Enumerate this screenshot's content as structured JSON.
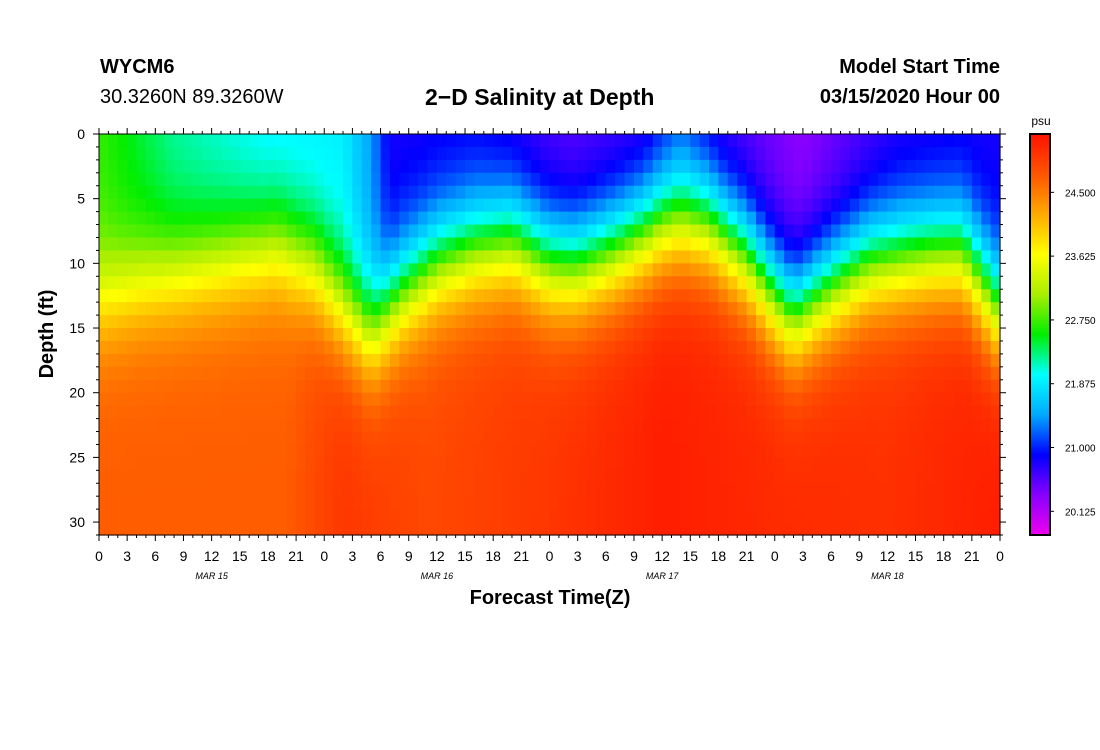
{
  "header": {
    "station_id": "WYCM6",
    "location": "30.3260N 89.3260W",
    "model_start_label": "Model Start Time",
    "model_start_value": "03/15/2020 Hour 00"
  },
  "chart_data": {
    "type": "heatmap",
    "title": "2−D Salinity at Depth",
    "xlabel": "Forecast Time(Z)",
    "ylabel": "Depth (ft)",
    "xlim": [
      0,
      96
    ],
    "ylim": [
      31,
      0
    ],
    "x_tick_labels": [
      "0",
      "3",
      "6",
      "9",
      "12",
      "15",
      "18",
      "21",
      "0",
      "3",
      "6",
      "9",
      "12",
      "15",
      "18",
      "21",
      "0",
      "3",
      "6",
      "9",
      "12",
      "15",
      "18",
      "21",
      "0",
      "3",
      "6",
      "9",
      "12",
      "15",
      "18",
      "21",
      "0"
    ],
    "x_tick_step_hours": 3,
    "day_labels": [
      {
        "hour": 12,
        "label": "MAR 15"
      },
      {
        "hour": 36,
        "label": "MAR 16"
      },
      {
        "hour": 60,
        "label": "MAR 17"
      },
      {
        "hour": 84,
        "label": "MAR 18"
      }
    ],
    "y_ticks": [
      0,
      5,
      10,
      15,
      20,
      25,
      30
    ],
    "colorbar": {
      "unit": "psu",
      "min": 19.8,
      "max": 25.3,
      "tick_labels": [
        "24.500",
        "23.625",
        "22.750",
        "21.875",
        "21.000",
        "20.125"
      ],
      "tick_values": [
        24.5,
        23.625,
        22.75,
        21.875,
        21.0,
        20.125
      ],
      "colors": [
        "#ee00ee",
        "#8800ff",
        "#0000ff",
        "#00aaff",
        "#00ffff",
        "#00ee00",
        "#aaee00",
        "#ffff00",
        "#ffaa00",
        "#ff5500",
        "#ff1100"
      ]
    },
    "halocline_depth_ft_by_hour": [
      [
        0,
        13.0
      ],
      [
        5,
        11.5
      ],
      [
        10,
        10.5
      ],
      [
        15,
        9.5
      ],
      [
        19,
        8.8
      ],
      [
        23,
        10.5
      ],
      [
        26,
        13.5
      ],
      [
        29,
        15.5
      ],
      [
        32,
        12.5
      ],
      [
        36,
        10.0
      ],
      [
        40,
        8.8
      ],
      [
        44,
        8.2
      ],
      [
        48,
        10.0
      ],
      [
        51,
        10.2
      ],
      [
        55,
        9.0
      ],
      [
        60,
        7.0
      ],
      [
        62,
        6.6
      ],
      [
        65,
        7.0
      ],
      [
        69,
        9.5
      ],
      [
        72,
        12.5
      ],
      [
        74,
        14.0
      ],
      [
        78,
        11.8
      ],
      [
        82,
        10.0
      ],
      [
        86,
        9.5
      ],
      [
        89,
        9.2
      ],
      [
        92,
        9.2
      ],
      [
        96,
        14.0
      ]
    ],
    "surface_salinity_psu_by_hour": [
      [
        0,
        22.7
      ],
      [
        8,
        22.2
      ],
      [
        18,
        21.9
      ],
      [
        26,
        21.9
      ],
      [
        29,
        21.4
      ],
      [
        31,
        20.8
      ],
      [
        40,
        20.8
      ],
      [
        50,
        20.5
      ],
      [
        58,
        20.6
      ],
      [
        62,
        21.0
      ],
      [
        66,
        20.6
      ],
      [
        75,
        20.3
      ],
      [
        85,
        20.7
      ],
      [
        96,
        20.8
      ]
    ],
    "bottom_salinity_psu_by_hour": [
      [
        0,
        24.7
      ],
      [
        20,
        24.7
      ],
      [
        26,
        25.0
      ],
      [
        35,
        24.85
      ],
      [
        48,
        25.0
      ],
      [
        60,
        25.2
      ],
      [
        72,
        25.1
      ],
      [
        84,
        25.05
      ],
      [
        96,
        25.2
      ]
    ]
  }
}
